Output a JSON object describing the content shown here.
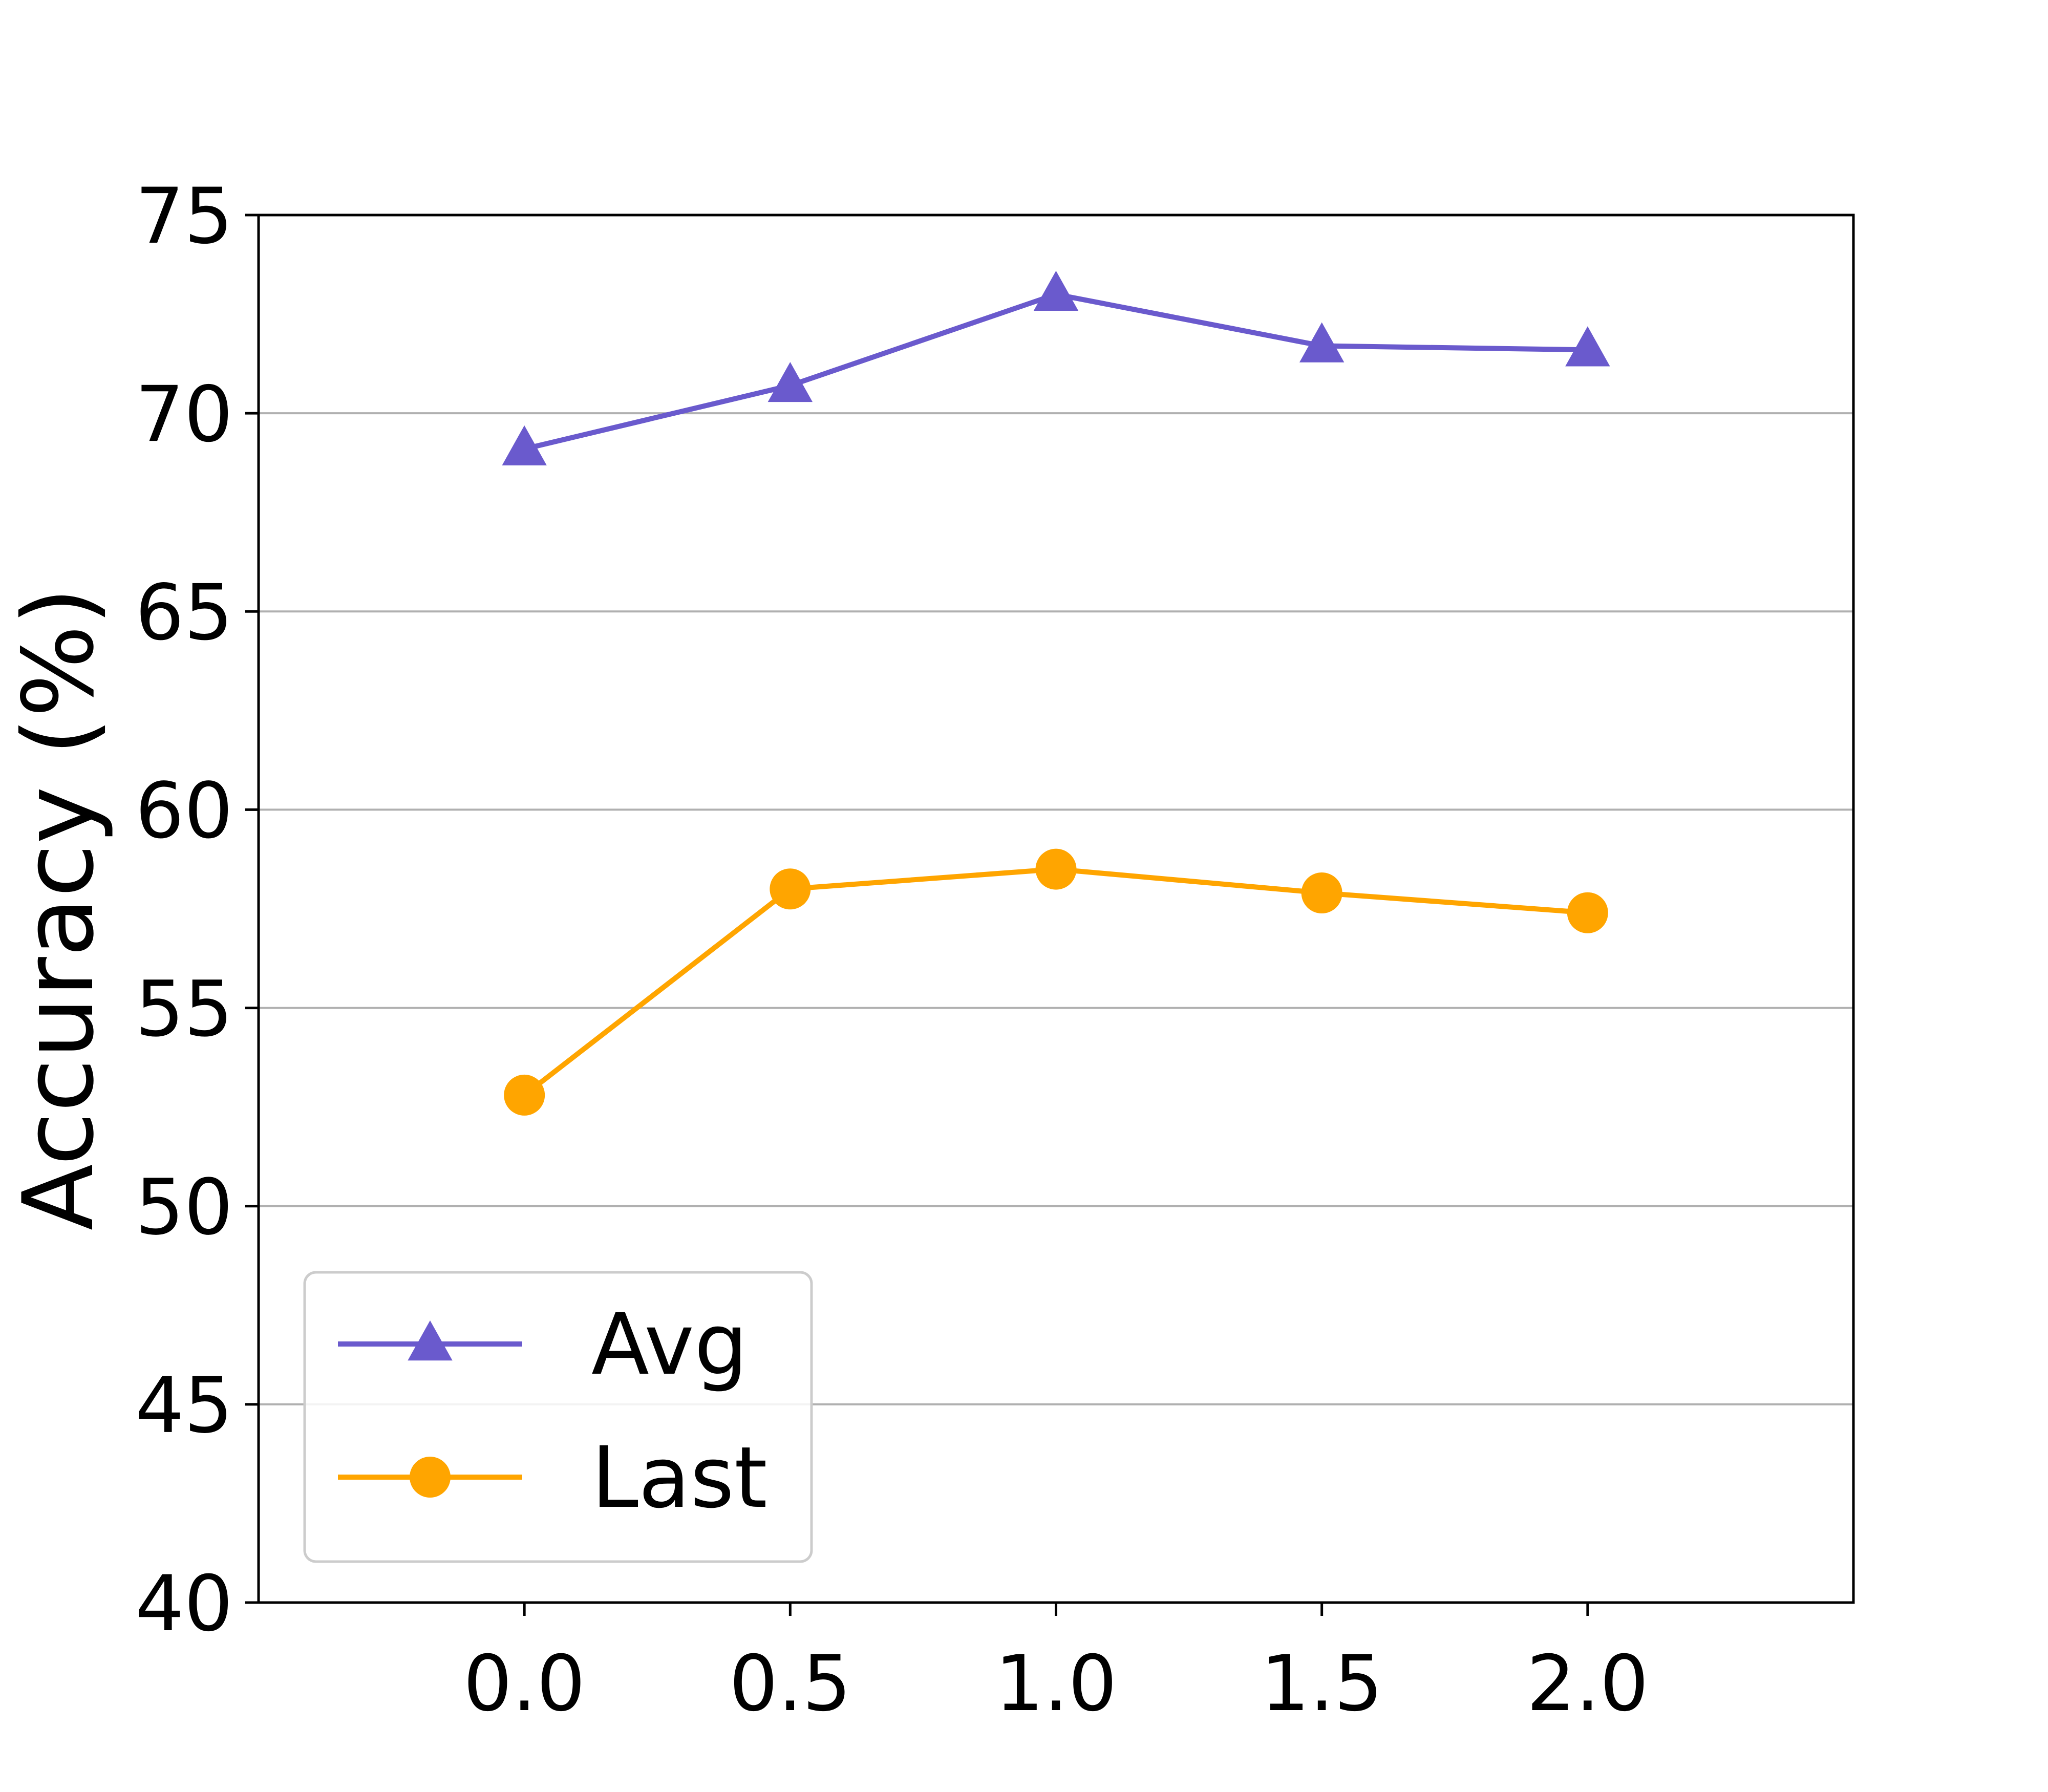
{
  "chart_data": {
    "type": "line",
    "title": "",
    "xlabel": "",
    "ylabel": "Accuracy (%)",
    "x": [
      0.0,
      0.5,
      1.0,
      1.5,
      2.0
    ],
    "x_tick_labels": [
      "0.0",
      "0.5",
      "1.0",
      "1.5",
      "2.0"
    ],
    "xlim": [
      -0.5,
      2.5
    ],
    "ylim": [
      40,
      75
    ],
    "y_ticks": [
      40,
      45,
      50,
      55,
      60,
      65,
      70,
      75
    ],
    "y_tick_labels": [
      "40",
      "45",
      "50",
      "55",
      "60",
      "65",
      "70",
      "75"
    ],
    "grid": "horizontal",
    "legend_position": "lower-left",
    "series": [
      {
        "name": "Avg",
        "values": [
          69.1,
          70.7,
          73.0,
          71.7,
          71.6
        ],
        "color": "#6a5acd",
        "marker": "triangle"
      },
      {
        "name": "Last",
        "values": [
          52.8,
          58.0,
          58.5,
          57.9,
          57.4
        ],
        "color": "#ffa500",
        "marker": "circle"
      }
    ]
  }
}
